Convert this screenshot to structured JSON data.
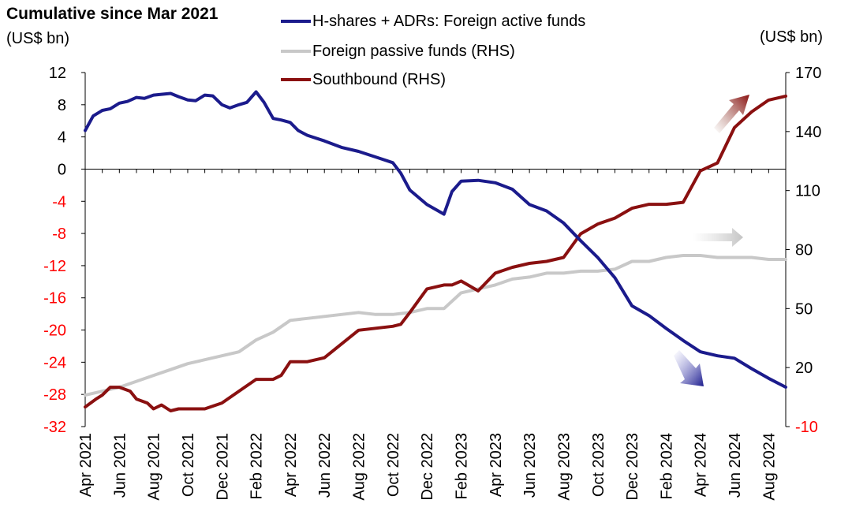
{
  "title": "Cumulative since Mar 2021",
  "left_unit": "(US$ bn)",
  "right_unit": "(US$ bn)",
  "colors": {
    "blue": "#1b1b8c",
    "gray": "#c8c8c8",
    "maroon": "#8a1010",
    "negative_tick": "#ff0000"
  },
  "legend": [
    {
      "label": "H-shares + ADRs: Foreign active funds",
      "color": "#1b1b8c"
    },
    {
      "label": "Foreign passive funds (RHS)",
      "color": "#c8c8c8"
    },
    {
      "label": "Southbound (RHS)",
      "color": "#8a1010"
    }
  ],
  "chart_data": {
    "type": "line",
    "x_tick_labels": [
      "Apr 2021",
      "Jun 2021",
      "Aug 2021",
      "Oct 2021",
      "Dec 2021",
      "Feb 2022",
      "Apr 2022",
      "Jun 2022",
      "Aug 2022",
      "Oct 2022",
      "Dec 2022",
      "Feb 2023",
      "Apr 2023",
      "Jun 2023",
      "Aug 2023",
      "Oct 2023",
      "Dec 2023",
      "Feb 2024",
      "Apr 2024",
      "Jun 2024",
      "Aug 2024"
    ],
    "x_range": [
      "2021-04",
      "2024-09"
    ],
    "y_left": {
      "ticks": [
        12,
        8,
        4,
        0,
        -4,
        -8,
        -12,
        -16,
        -20,
        -24,
        -28,
        -32
      ],
      "ylim": [
        -32,
        12
      ],
      "negative_color": "#ff0000"
    },
    "y_right": {
      "ticks": [
        170,
        140,
        110,
        80,
        50,
        20,
        -10
      ],
      "ylim": [
        -10,
        170
      ],
      "negative_color": "#ff0000"
    },
    "series": [
      {
        "name": "H-shares + ADRs: Foreign active funds",
        "axis": "left",
        "color": "#1b1b8c",
        "x": [
          "2021-04",
          "2021-04-15",
          "2021-05",
          "2021-05-15",
          "2021-06",
          "2021-06-15",
          "2021-07",
          "2021-07-15",
          "2021-08",
          "2021-08-15",
          "2021-09",
          "2021-09-15",
          "2021-10",
          "2021-10-15",
          "2021-11",
          "2021-11-15",
          "2021-12",
          "2021-12-15",
          "2022-01",
          "2022-01-15",
          "2022-02",
          "2022-02-15",
          "2022-03",
          "2022-03-15",
          "2022-04",
          "2022-04-15",
          "2022-05",
          "2022-06",
          "2022-07",
          "2022-08",
          "2022-09",
          "2022-10",
          "2022-10-15",
          "2022-11",
          "2022-12",
          "2023-01",
          "2023-01-15",
          "2023-02",
          "2023-03",
          "2023-04",
          "2023-05",
          "2023-06",
          "2023-07",
          "2023-08",
          "2023-09",
          "2023-10",
          "2023-11",
          "2023-12",
          "2024-01",
          "2024-02",
          "2024-03",
          "2024-04",
          "2024-05",
          "2024-06",
          "2024-07",
          "2024-08",
          "2024-09"
        ],
        "values": [
          4.8,
          6.6,
          7.3,
          7.5,
          8.2,
          8.4,
          8.9,
          8.8,
          9.2,
          9.3,
          9.4,
          9.0,
          8.6,
          8.5,
          9.2,
          9.1,
          8.0,
          7.6,
          8.0,
          8.3,
          9.6,
          8.3,
          6.3,
          6.1,
          5.8,
          4.8,
          4.2,
          3.5,
          2.7,
          2.2,
          1.5,
          0.8,
          -0.5,
          -2.6,
          -4.4,
          -5.6,
          -2.8,
          -1.5,
          -1.4,
          -1.7,
          -2.5,
          -4.4,
          -5.2,
          -6.7,
          -8.9,
          -11.0,
          -13.5,
          -17.0,
          -18.2,
          -19.8,
          -21.3,
          -22.7,
          -23.2,
          -23.5,
          -24.8,
          -26.0,
          -27.1
        ]
      },
      {
        "name": "Foreign passive funds (RHS)",
        "axis": "right",
        "color": "#c8c8c8",
        "x": [
          "2021-04",
          "2021-05",
          "2021-06",
          "2021-07",
          "2021-08",
          "2021-09",
          "2021-10",
          "2021-11",
          "2021-12",
          "2022-01",
          "2022-02",
          "2022-03",
          "2022-04",
          "2022-05",
          "2022-06",
          "2022-07",
          "2022-08",
          "2022-09",
          "2022-10",
          "2022-11",
          "2022-12",
          "2023-01",
          "2023-02",
          "2023-03",
          "2023-04",
          "2023-05",
          "2023-06",
          "2023-07",
          "2023-08",
          "2023-09",
          "2023-10",
          "2023-11",
          "2023-12",
          "2024-01",
          "2024-02",
          "2024-03",
          "2024-04",
          "2024-05",
          "2024-06",
          "2024-07",
          "2024-08",
          "2024-09"
        ],
        "values": [
          6,
          8,
          10,
          13,
          16,
          19,
          22,
          24,
          26,
          28,
          34,
          38,
          44,
          45,
          46,
          47,
          48,
          47,
          47,
          48,
          50,
          50,
          58,
          60,
          62,
          65,
          66,
          68,
          68,
          69,
          69,
          70,
          74,
          74,
          76,
          77,
          77,
          76,
          76,
          76,
          75,
          75
        ]
      },
      {
        "name": "Southbound (RHS)",
        "axis": "right",
        "color": "#8a1010",
        "x": [
          "2021-04",
          "2021-04-20",
          "2021-05",
          "2021-05-15",
          "2021-06",
          "2021-06-20",
          "2021-07",
          "2021-07-20",
          "2021-08",
          "2021-08-15",
          "2021-09",
          "2021-09-15",
          "2021-10",
          "2021-11",
          "2021-12",
          "2022-01",
          "2022-02",
          "2022-03",
          "2022-03-15",
          "2022-04",
          "2022-05",
          "2022-06",
          "2022-07",
          "2022-08",
          "2022-09",
          "2022-10",
          "2022-10-15",
          "2022-11",
          "2022-12",
          "2023-01",
          "2023-01-15",
          "2023-02",
          "2023-03",
          "2023-04",
          "2023-05",
          "2023-06",
          "2023-07",
          "2023-08",
          "2023-09",
          "2023-10",
          "2023-11",
          "2023-12",
          "2024-01",
          "2024-02",
          "2024-03",
          "2024-04",
          "2024-05",
          "2024-06",
          "2024-07",
          "2024-08",
          "2024-09"
        ],
        "values": [
          0,
          4,
          6,
          10,
          10,
          8,
          4,
          2,
          -1,
          1,
          -2,
          -1,
          -1,
          -1,
          2,
          8,
          14,
          14,
          16,
          23,
          23,
          25,
          32,
          39,
          40,
          41,
          42,
          48,
          60,
          62,
          62,
          64,
          59,
          68,
          71,
          73,
          74,
          76,
          88,
          93,
          96,
          101,
          103,
          103,
          104,
          120,
          124,
          142,
          150,
          156,
          158
        ]
      }
    ],
    "arrows": [
      "up-right maroon",
      "right gray",
      "down-right blue"
    ]
  }
}
